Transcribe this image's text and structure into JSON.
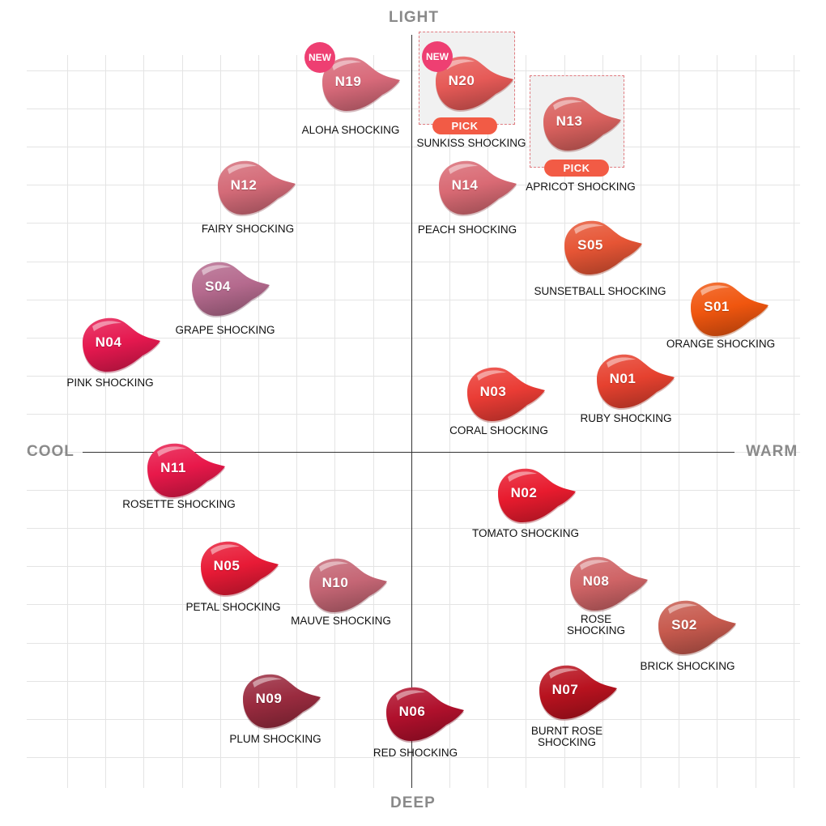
{
  "axes": {
    "top": "LIGHT",
    "bottom": "DEEP",
    "left": "COOL",
    "right": "WARM"
  },
  "badges": {
    "new": "NEW",
    "pick": "PICK"
  },
  "shades": [
    {
      "code": "N19",
      "name": "ALOHA SHOCKING",
      "color": "#d86a7a",
      "badge": "new"
    },
    {
      "code": "N20",
      "name": "SUNKISS SHOCKING",
      "color": "#e65a57",
      "badge": "new",
      "pick": true
    },
    {
      "code": "N13",
      "name": "APRICOT SHOCKING",
      "color": "#d9615e",
      "pick": true
    },
    {
      "code": "N12",
      "name": "FAIRY SHOCKING",
      "color": "#d46b78"
    },
    {
      "code": "N14",
      "name": "PEACH SHOCKING",
      "color": "#d96a74"
    },
    {
      "code": "S05",
      "name": "SUNSETBALL SHOCKING",
      "color": "#e65535"
    },
    {
      "code": "S04",
      "name": "GRAPE SHOCKING",
      "color": "#b56a8e"
    },
    {
      "code": "S01",
      "name": "ORANGE SHOCKING",
      "color": "#f0560f"
    },
    {
      "code": "N04",
      "name": "PINK SHOCKING",
      "color": "#e5184f"
    },
    {
      "code": "N03",
      "name": "CORAL SHOCKING",
      "color": "#ea3c35"
    },
    {
      "code": "N01",
      "name": "RUBY SHOCKING",
      "color": "#e6412f"
    },
    {
      "code": "N11",
      "name": "ROSETTE SHOCKING",
      "color": "#e8184a"
    },
    {
      "code": "N02",
      "name": "TOMATO SHOCKING",
      "color": "#e81b2e"
    },
    {
      "code": "N05",
      "name": "PETAL SHOCKING",
      "color": "#e81a36"
    },
    {
      "code": "N10",
      "name": "MAUVE SHOCKING",
      "color": "#c56675"
    },
    {
      "code": "N08",
      "name": "ROSE\nSHOCKING",
      "color": "#cf6466"
    },
    {
      "code": "S02",
      "name": "BRICK SHOCKING",
      "color": "#c75a4e"
    },
    {
      "code": "N09",
      "name": "PLUM SHOCKING",
      "color": "#9a2b3f"
    },
    {
      "code": "N06",
      "name": "RED SHOCKING",
      "color": "#b0102c"
    },
    {
      "code": "N07",
      "name": "BURNT ROSE\nSHOCKING",
      "color": "#b8121f"
    }
  ]
}
